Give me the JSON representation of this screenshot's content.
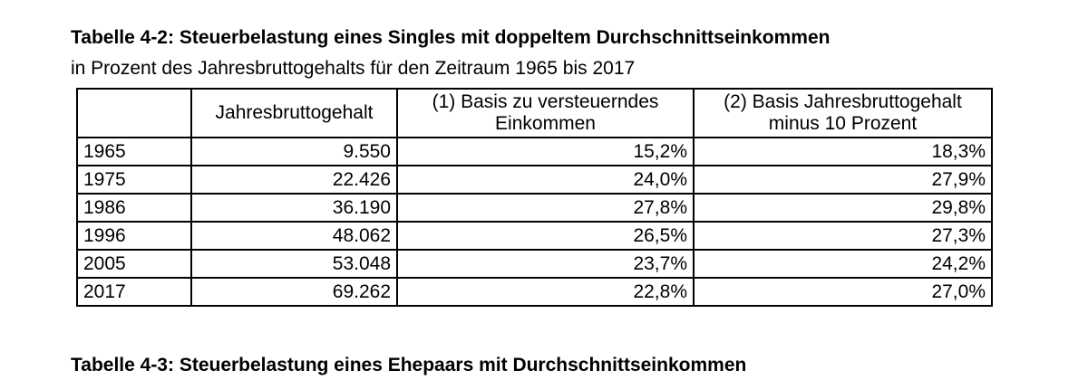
{
  "table1": {
    "title": "Tabelle 4-2: Steuerbelastung eines Singles mit doppeltem Durchschnittseinkommen",
    "subtitle": "in Prozent des Jahresbruttogehalts für den Zeitraum 1965 bis 2017",
    "headers": {
      "year": "",
      "gross": "Jahresbruttogehalt",
      "basis1_line1": "(1) Basis zu versteuerndes",
      "basis1_line2": "Einkommen",
      "basis2_line1": "(2) Basis Jahresbruttogehalt",
      "basis2_line2": "minus 10 Prozent"
    },
    "rows": [
      {
        "year": "1965",
        "gross": "9.550",
        "basis1": "15,2%",
        "basis2": "18,3%"
      },
      {
        "year": "1975",
        "gross": "22.426",
        "basis1": "24,0%",
        "basis2": "27,9%"
      },
      {
        "year": "1986",
        "gross": "36.190",
        "basis1": "27,8%",
        "basis2": "29,8%"
      },
      {
        "year": "1996",
        "gross": "48.062",
        "basis1": "26,5%",
        "basis2": "27,3%"
      },
      {
        "year": "2005",
        "gross": "53.048",
        "basis1": "23,7%",
        "basis2": "24,2%"
      },
      {
        "year": "2017",
        "gross": "69.262",
        "basis1": "22,8%",
        "basis2": "27,0%"
      }
    ]
  },
  "table2": {
    "title": "Tabelle 4-3: Steuerbelastung eines Ehepaars mit Durchschnittseinkommen"
  }
}
